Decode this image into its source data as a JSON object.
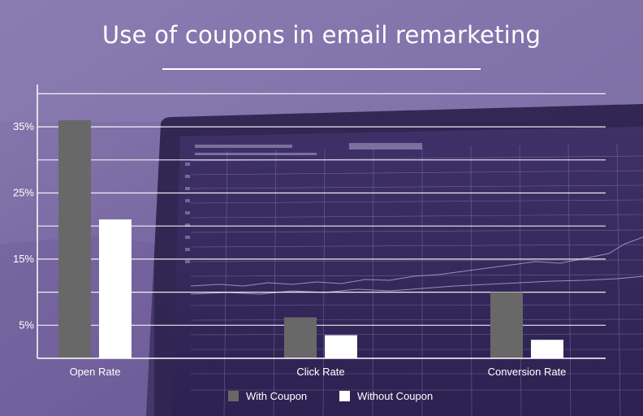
{
  "chart_data": {
    "type": "bar",
    "title": "Use of coupons in email remarketing",
    "xlabel": "",
    "ylabel": "",
    "categories": [
      "Open Rate",
      "Click Rate",
      "Conversion Rate"
    ],
    "series": [
      {
        "name": "With Coupon",
        "color": "#686868",
        "values": [
          36,
          6.2,
          10
        ]
      },
      {
        "name": "Without Coupon",
        "color": "#ffffff",
        "values": [
          21,
          3.5,
          2.8
        ]
      }
    ],
    "yticks": [
      5,
      15,
      25,
      35
    ],
    "ytick_labels": [
      "5%",
      "15%",
      "25%",
      "35%"
    ],
    "ylim": [
      0,
      40
    ],
    "grid": true,
    "legend": "bottom"
  }
}
